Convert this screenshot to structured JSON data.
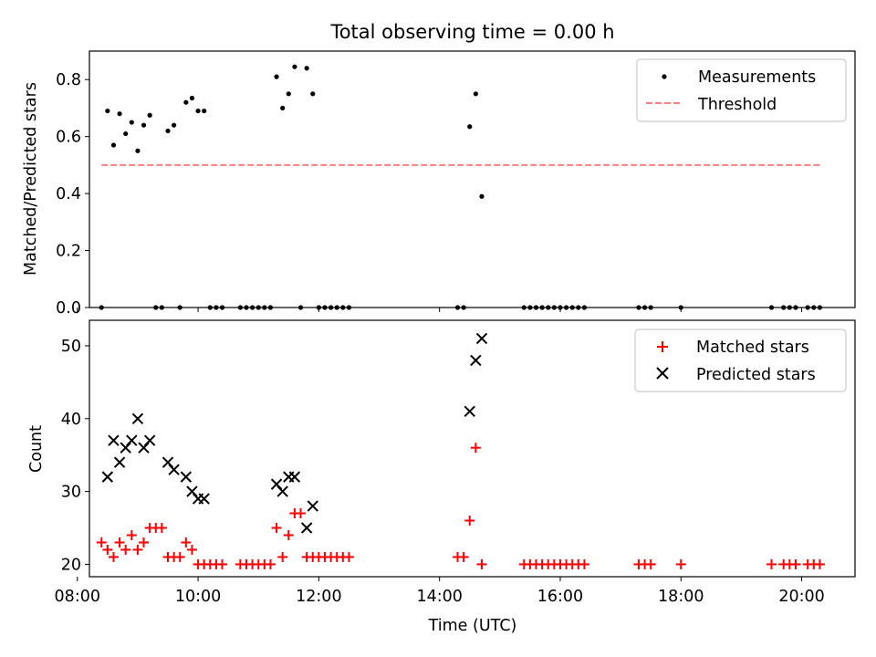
{
  "chart_data": [
    {
      "type": "scatter",
      "title": "Total observing time = 0.00 h",
      "xlabel": "",
      "ylabel": "Matched/Predicted stars",
      "xlim": [
        "08:12",
        "20:53"
      ],
      "ylim": [
        0,
        0.9
      ],
      "y_ticks": [
        "0.0",
        "0.2",
        "0.4",
        "0.6",
        "0.8"
      ],
      "x_ticks_shown": false,
      "legend_position": "top-right",
      "series": [
        {
          "name": "Measurements",
          "marker": "dot",
          "color": "#000000",
          "points": [
            [
              "08:24",
              0.0
            ],
            [
              "08:30",
              0.69
            ],
            [
              "08:36",
              0.57
            ],
            [
              "08:42",
              0.68
            ],
            [
              "08:48",
              0.61
            ],
            [
              "08:54",
              0.65
            ],
            [
              "09:00",
              0.55
            ],
            [
              "09:06",
              0.64
            ],
            [
              "09:12",
              0.675
            ],
            [
              "09:18",
              0.0
            ],
            [
              "09:24",
              0.0
            ],
            [
              "09:30",
              0.62
            ],
            [
              "09:36",
              0.64
            ],
            [
              "09:42",
              0.0
            ],
            [
              "09:48",
              0.72
            ],
            [
              "09:54",
              0.735
            ],
            [
              "10:00",
              0.69
            ],
            [
              "10:06",
              0.69
            ],
            [
              "10:12",
              0.0
            ],
            [
              "10:18",
              0.0
            ],
            [
              "10:24",
              0.0
            ],
            [
              "10:42",
              0.0
            ],
            [
              "10:48",
              0.0
            ],
            [
              "10:54",
              0.0
            ],
            [
              "11:00",
              0.0
            ],
            [
              "11:06",
              0.0
            ],
            [
              "11:12",
              0.0
            ],
            [
              "11:18",
              0.81
            ],
            [
              "11:24",
              0.7
            ],
            [
              "11:30",
              0.75
            ],
            [
              "11:36",
              0.845
            ],
            [
              "11:42",
              0.0
            ],
            [
              "11:48",
              0.84
            ],
            [
              "11:54",
              0.75
            ],
            [
              "12:00",
              0.0
            ],
            [
              "12:06",
              0.0
            ],
            [
              "12:12",
              0.0
            ],
            [
              "12:18",
              0.0
            ],
            [
              "12:24",
              0.0
            ],
            [
              "12:30",
              0.0
            ],
            [
              "14:18",
              0.0
            ],
            [
              "14:24",
              0.0
            ],
            [
              "14:30",
              0.635
            ],
            [
              "14:36",
              0.75
            ],
            [
              "14:42",
              0.39
            ],
            [
              "15:24",
              0.0
            ],
            [
              "15:30",
              0.0
            ],
            [
              "15:36",
              0.0
            ],
            [
              "15:42",
              0.0
            ],
            [
              "15:48",
              0.0
            ],
            [
              "15:54",
              0.0
            ],
            [
              "16:00",
              0.0
            ],
            [
              "16:06",
              0.0
            ],
            [
              "16:12",
              0.0
            ],
            [
              "16:18",
              0.0
            ],
            [
              "16:24",
              0.0
            ],
            [
              "17:18",
              0.0
            ],
            [
              "17:24",
              0.0
            ],
            [
              "17:30",
              0.0
            ],
            [
              "18:00",
              0.0
            ],
            [
              "19:30",
              0.0
            ],
            [
              "19:42",
              0.0
            ],
            [
              "19:48",
              0.0
            ],
            [
              "19:54",
              0.0
            ],
            [
              "20:06",
              0.0
            ],
            [
              "20:12",
              0.0
            ],
            [
              "20:18",
              0.0
            ]
          ]
        },
        {
          "name": "Threshold",
          "marker": "dashed-line",
          "color": "#ff8080",
          "points": [
            [
              "08:24",
              0.5
            ],
            [
              "20:18",
              0.5
            ]
          ]
        }
      ]
    },
    {
      "type": "scatter",
      "title": "",
      "xlabel": "Time (UTC)",
      "ylabel": "Count",
      "xlim": [
        "08:12",
        "20:53"
      ],
      "ylim": [
        18.3,
        53.5
      ],
      "y_ticks": [
        "20",
        "30",
        "40",
        "50"
      ],
      "x_ticks": [
        "08:00",
        "10:00",
        "12:00",
        "14:00",
        "16:00",
        "18:00",
        "20:00"
      ],
      "legend_position": "top-right",
      "series": [
        {
          "name": "Matched stars",
          "marker": "plus",
          "color": "#ff0000",
          "points": [
            [
              "08:24",
              23
            ],
            [
              "08:30",
              22
            ],
            [
              "08:36",
              21
            ],
            [
              "08:42",
              23
            ],
            [
              "08:48",
              22
            ],
            [
              "08:54",
              24
            ],
            [
              "09:00",
              22
            ],
            [
              "09:06",
              23
            ],
            [
              "09:12",
              25
            ],
            [
              "09:18",
              25
            ],
            [
              "09:24",
              25
            ],
            [
              "09:30",
              21
            ],
            [
              "09:36",
              21
            ],
            [
              "09:42",
              21
            ],
            [
              "09:48",
              23
            ],
            [
              "09:54",
              22
            ],
            [
              "10:00",
              20
            ],
            [
              "10:06",
              20
            ],
            [
              "10:12",
              20
            ],
            [
              "10:18",
              20
            ],
            [
              "10:24",
              20
            ],
            [
              "10:42",
              20
            ],
            [
              "10:48",
              20
            ],
            [
              "10:54",
              20
            ],
            [
              "11:00",
              20
            ],
            [
              "11:06",
              20
            ],
            [
              "11:12",
              20
            ],
            [
              "11:18",
              25
            ],
            [
              "11:24",
              21
            ],
            [
              "11:30",
              24
            ],
            [
              "11:36",
              27
            ],
            [
              "11:42",
              27
            ],
            [
              "11:48",
              21
            ],
            [
              "11:54",
              21
            ],
            [
              "12:00",
              21
            ],
            [
              "12:06",
              21
            ],
            [
              "12:12",
              21
            ],
            [
              "12:18",
              21
            ],
            [
              "12:24",
              21
            ],
            [
              "12:30",
              21
            ],
            [
              "14:18",
              21
            ],
            [
              "14:24",
              21
            ],
            [
              "14:30",
              26
            ],
            [
              "14:36",
              36
            ],
            [
              "14:42",
              20
            ],
            [
              "15:24",
              20
            ],
            [
              "15:30",
              20
            ],
            [
              "15:36",
              20
            ],
            [
              "15:42",
              20
            ],
            [
              "15:48",
              20
            ],
            [
              "15:54",
              20
            ],
            [
              "16:00",
              20
            ],
            [
              "16:06",
              20
            ],
            [
              "16:12",
              20
            ],
            [
              "16:18",
              20
            ],
            [
              "16:24",
              20
            ],
            [
              "17:18",
              20
            ],
            [
              "17:24",
              20
            ],
            [
              "17:30",
              20
            ],
            [
              "18:00",
              20
            ],
            [
              "19:30",
              20
            ],
            [
              "19:42",
              20
            ],
            [
              "19:48",
              20
            ],
            [
              "19:54",
              20
            ],
            [
              "20:06",
              20
            ],
            [
              "20:12",
              20
            ],
            [
              "20:18",
              20
            ]
          ]
        },
        {
          "name": "Predicted stars",
          "marker": "x",
          "color": "#000000",
          "points": [
            [
              "08:30",
              32
            ],
            [
              "08:36",
              37
            ],
            [
              "08:42",
              34
            ],
            [
              "08:48",
              36
            ],
            [
              "08:54",
              37
            ],
            [
              "09:00",
              40
            ],
            [
              "09:06",
              36
            ],
            [
              "09:12",
              37
            ],
            [
              "09:30",
              34
            ],
            [
              "09:36",
              33
            ],
            [
              "09:48",
              32
            ],
            [
              "09:54",
              30
            ],
            [
              "10:00",
              29
            ],
            [
              "10:06",
              29
            ],
            [
              "11:18",
              31
            ],
            [
              "11:24",
              30
            ],
            [
              "11:30",
              32
            ],
            [
              "11:36",
              32
            ],
            [
              "11:48",
              25
            ],
            [
              "11:54",
              28
            ],
            [
              "14:30",
              41
            ],
            [
              "14:36",
              48
            ],
            [
              "14:42",
              51
            ]
          ]
        }
      ]
    }
  ]
}
